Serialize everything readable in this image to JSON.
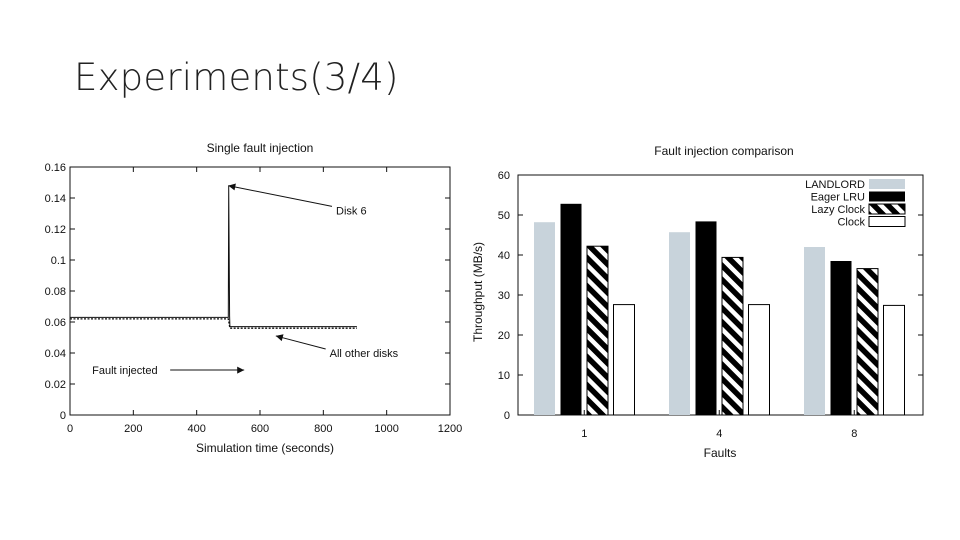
{
  "slide": {
    "title": "Experiments(3/4)"
  },
  "chart_data": [
    {
      "type": "line",
      "title": "Single fault injection",
      "xlabel": "Simulation time (seconds)",
      "ylabel": "",
      "xlim": [
        0,
        1200
      ],
      "ylim": [
        0,
        0.16
      ],
      "x_ticks": [
        "0",
        "200",
        "400",
        "600",
        "800",
        "1000",
        "1200"
      ],
      "y_ticks": [
        "0",
        "0.02",
        "0.04",
        "0.06",
        "0.08",
        "0.1",
        "0.12",
        "0.14",
        "0.16"
      ],
      "grid": false,
      "series": [
        {
          "name": "",
          "style": "solid",
          "x": [
            0,
            500,
            501,
            504,
            505,
            906
          ],
          "y": [
            0.063,
            0.063,
            0.148,
            0.064,
            0.057,
            0.057
          ]
        },
        {
          "name": "",
          "style": "dashed",
          "x": [
            0,
            500,
            505,
            906
          ],
          "y": [
            0.062,
            0.062,
            0.056,
            0.056
          ]
        }
      ],
      "annotations": [
        {
          "text": "Disk 6",
          "arrow_to": [
            500,
            0.148
          ],
          "text_at": [
            840,
            0.132
          ]
        },
        {
          "text": "All other disks",
          "arrow_to": [
            650,
            0.051
          ],
          "text_at": [
            820,
            0.04
          ]
        },
        {
          "text": "Fault injected",
          "arrow_to": [
            550,
            0.029
          ],
          "text_at": [
            70,
            0.029
          ]
        }
      ]
    },
    {
      "type": "bar",
      "title": "Fault injection comparison",
      "xlabel": "Faults",
      "ylabel": "Throughput (MB/s)",
      "ylim": [
        0,
        60
      ],
      "y_ticks": [
        "0",
        "10",
        "20",
        "30",
        "40",
        "50",
        "60"
      ],
      "categories": [
        "1",
        "4",
        "8"
      ],
      "legend": "top-right",
      "grid": false,
      "series": [
        {
          "name": "LANDLORD",
          "color": "#c8d3db",
          "pattern": "solid",
          "values": [
            48.2,
            45.7,
            42.0
          ]
        },
        {
          "name": "Eager LRU",
          "color": "#000000",
          "pattern": "solid",
          "values": [
            52.8,
            48.4,
            38.5
          ]
        },
        {
          "name": "Lazy Clock",
          "color": "#000000",
          "pattern": "hatch",
          "values": [
            42.2,
            39.4,
            36.6
          ]
        },
        {
          "name": "Clock",
          "color": "#ffffff",
          "pattern": "outline",
          "values": [
            27.6,
            27.6,
            27.4
          ]
        }
      ]
    }
  ]
}
